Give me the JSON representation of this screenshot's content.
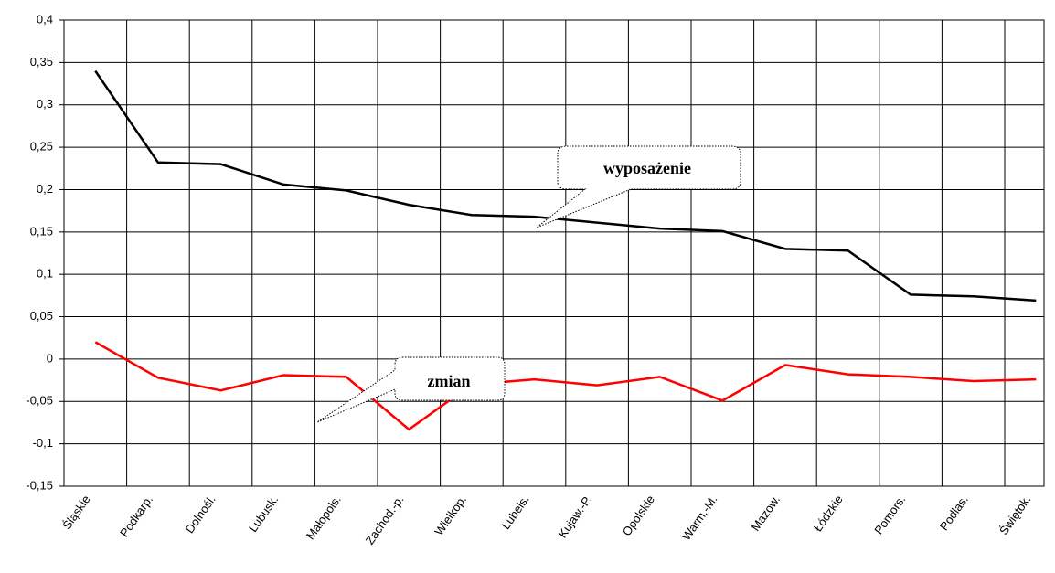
{
  "chart_data": {
    "type": "line",
    "categories": [
      "Śląskie",
      "Podkarp.",
      "Dolnośl.",
      "Lubusk.",
      "Małopols.",
      "Zachod.-p.",
      "Wielkop.",
      "Lubels.",
      "Kujaw.-P.",
      "Opolskie",
      "Warm.-M.",
      "Mazow.",
      "Łódzkie",
      "Pomors.",
      "Podlas.",
      "Świętok."
    ],
    "series": [
      {
        "color": "#000000",
        "values": [
          0.34,
          0.232,
          0.23,
          0.206,
          0.199,
          0.182,
          0.17,
          0.168,
          0.161,
          0.154,
          0.151,
          0.13,
          0.128,
          0.076,
          0.074,
          0.069
        ]
      },
      {
        "color": "#ff0000",
        "values": [
          0.02,
          -0.022,
          -0.037,
          -0.019,
          -0.021,
          -0.083,
          -0.03,
          -0.024,
          -0.031,
          -0.021,
          -0.049,
          -0.007,
          -0.018,
          -0.021,
          -0.026,
          -0.024
        ]
      }
    ],
    "ylim": [
      -0.15,
      0.4
    ],
    "yticks": [
      {
        "value": -0.15,
        "label": "-0,15"
      },
      {
        "value": -0.1,
        "label": "-0,1"
      },
      {
        "value": -0.05,
        "label": "-0,05"
      },
      0,
      {
        "value": 0.05,
        "label": "0,05"
      },
      {
        "value": 0.1,
        "label": "0,1"
      },
      {
        "value": 0.15,
        "label": "0,15"
      },
      {
        "value": 0.2,
        "label": "0,2"
      },
      {
        "value": 0.25,
        "label": "0,25"
      },
      {
        "value": 0.3,
        "label": "0,3"
      },
      {
        "value": 0.35,
        "label": "0,35"
      },
      {
        "value": 0.4,
        "label": "0,4"
      }
    ],
    "grid": true,
    "annotations": [
      "wyposażenie",
      "zmian"
    ]
  }
}
